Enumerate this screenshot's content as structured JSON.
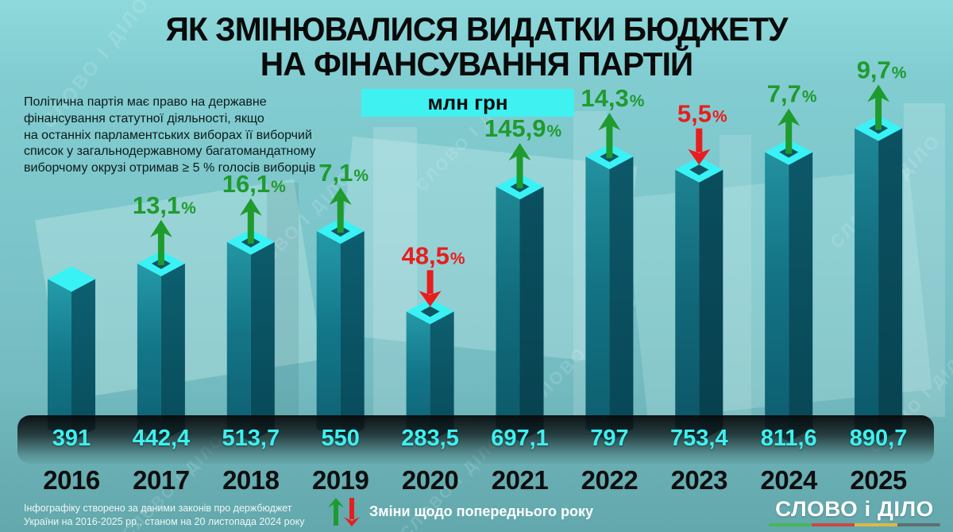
{
  "header": {
    "title_line1": "ЯК ЗМІНЮВАЛИСЯ ВИДАТКИ БЮДЖЕТУ",
    "title_line2": "НА ФІНАНСУВАННЯ ПАРТІЙ",
    "unit_label": "млн грн"
  },
  "note": "Політична партія має право на державне\nфінансування статутної діяльності, якщо\nна останніх парламентських виборах її виборчий\nсписок у загальнодержавному багатомандатному\nвиборчому окрузі отримав ≥ 5 % голосів виборців",
  "chart_data": {
    "type": "bar",
    "title": "ЯК ЗМІНЮВАЛИСЯ ВИДАТКИ БЮДЖЕТУ НА ФІНАНСУВАННЯ ПАРТІЙ",
    "unit": "млн грн",
    "categories": [
      "2016",
      "2017",
      "2018",
      "2019",
      "2020",
      "2021",
      "2022",
      "2023",
      "2024",
      "2025"
    ],
    "values": [
      391,
      442.4,
      513.7,
      550,
      283.5,
      697.1,
      797,
      753.4,
      811.6,
      890.7
    ],
    "value_labels": [
      "391",
      "442,4",
      "513,7",
      "550",
      "283,5",
      "697,1",
      "797",
      "753,4",
      "811,6",
      "890,7"
    ],
    "pct_changes": [
      null,
      "13,1",
      "16,1",
      "7,1",
      "48,5",
      "145,9",
      "14,3",
      "5,5",
      "7,7",
      "9,7"
    ],
    "pct_directions": [
      null,
      "up",
      "up",
      "up",
      "down",
      "up",
      "up",
      "down",
      "up",
      "up"
    ],
    "ylim": [
      0,
      900
    ],
    "grid": false,
    "legend_position": "bottom"
  },
  "colors": {
    "up": "#1f9b2e",
    "down": "#e81d1d",
    "bar_top": "#39f2f5",
    "bar_front": "#15798b",
    "bar_side": "#0c5b6d",
    "value_text": "#3ff0f0",
    "unit_band": "#40f1f1",
    "logo_bar": [
      "#45b854",
      "#cf4742",
      "#dfb844",
      "#5f6f6e"
    ]
  },
  "footer": {
    "source_note": "Інфографіку створено за даними законів про держбюджет\nУкраїни на 2016-2025 рр., станом на 20 листопада 2024 року",
    "legend_label": "Зміни щодо попереднього року",
    "logo_text": "СЛОВО і ДІЛО"
  },
  "watermark_text": "СЛОВО І ДІЛО"
}
